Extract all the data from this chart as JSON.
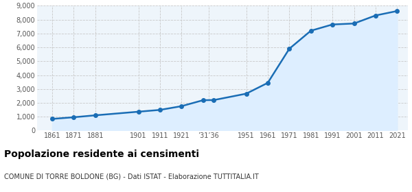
{
  "years": [
    1861,
    1871,
    1881,
    1901,
    1911,
    1921,
    1931,
    1936,
    1951,
    1961,
    1971,
    1981,
    1991,
    2001,
    2011,
    2021
  ],
  "population": [
    840,
    960,
    1100,
    1360,
    1490,
    1760,
    2190,
    2200,
    2660,
    3440,
    5900,
    7200,
    7650,
    7720,
    8300,
    8620
  ],
  "line_color": "#1a6db5",
  "fill_color": "#ddeeff",
  "marker_color": "#1a6db5",
  "grid_color": "#c8c8c8",
  "background_color": "#eef5fb",
  "title": "Popolazione residente ai censimenti",
  "subtitle": "COMUNE DI TORRE BOLDONE (BG) - Dati ISTAT - Elaborazione TUTTITALIA.IT",
  "title_fontsize": 10,
  "subtitle_fontsize": 7,
  "ylim": [
    0,
    9000
  ],
  "yticks": [
    0,
    1000,
    2000,
    3000,
    4000,
    5000,
    6000,
    7000,
    8000,
    9000
  ],
  "custom_x_ticks": [
    1861,
    1871,
    1881,
    1901,
    1911,
    1921,
    1933.5,
    1951,
    1961,
    1971,
    1981,
    1991,
    2001,
    2011,
    2021
  ],
  "custom_x_labels": [
    "1861",
    "1871",
    "1881",
    "1901",
    "1911",
    "1921",
    "’31’36",
    "1951",
    "1961",
    "1971",
    "1981",
    "1991",
    "2001",
    "2011",
    "2021"
  ]
}
